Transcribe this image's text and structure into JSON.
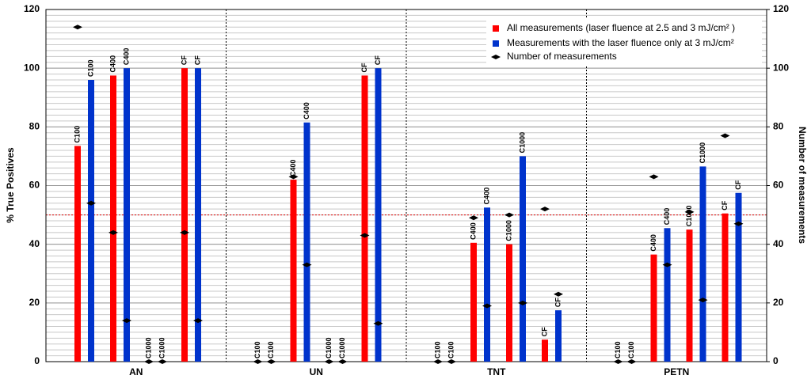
{
  "chart_data": {
    "type": "bar",
    "categories": [
      "AN",
      "UN",
      "TNT",
      "PETN"
    ],
    "subcategories": [
      "C100",
      "C400",
      "C1000",
      "CF"
    ],
    "ylabel": "% True Positives",
    "y2label": "Number of measurements",
    "ylim": [
      0,
      120
    ],
    "yticks": [
      0,
      20,
      40,
      60,
      80,
      100,
      120
    ],
    "y2lim": [
      0,
      120
    ],
    "y2ticks": [
      0,
      20,
      40,
      60,
      80,
      100,
      120
    ],
    "minor_grid_step": 2,
    "grid": true,
    "reference_line": 50,
    "reference_color": "#e00000",
    "legend": "upper right",
    "series": [
      {
        "name": "All measurements (laser fluence at 2.5 and 3 mJ/cm² )",
        "color": "#ff0000",
        "values": [
          [
            73.5,
            97.5,
            0,
            100
          ],
          [
            0,
            62,
            0,
            97.5
          ],
          [
            0,
            40.5,
            40,
            7.5
          ],
          [
            0,
            36.5,
            45,
            50.5
          ]
        ]
      },
      {
        "name": "Measurements with the laser fluence only at 3 mJ/cm²",
        "color": "#0033cc",
        "values": [
          [
            96,
            100,
            0,
            100
          ],
          [
            0,
            81.5,
            0,
            100
          ],
          [
            0,
            52.5,
            70,
            17.5
          ],
          [
            0,
            45.5,
            66.5,
            57.5
          ]
        ]
      },
      {
        "name": "Number of measurements",
        "color": "#000000",
        "axis": "y2",
        "type": "scatter",
        "values": [
          [
            [
              114,
              54
            ],
            [
              44,
              14
            ],
            [
              0,
              0
            ],
            [
              44,
              14
            ]
          ],
          [
            [
              0,
              0
            ],
            [
              63,
              33
            ],
            [
              0,
              0
            ],
            [
              43,
              13
            ]
          ],
          [
            [
              0,
              0
            ],
            [
              49,
              19
            ],
            [
              50,
              20
            ],
            [
              52,
              23
            ]
          ],
          [
            [
              0,
              0
            ],
            [
              63,
              33
            ],
            [
              51,
              21
            ],
            [
              77,
              47
            ]
          ]
        ]
      }
    ]
  }
}
